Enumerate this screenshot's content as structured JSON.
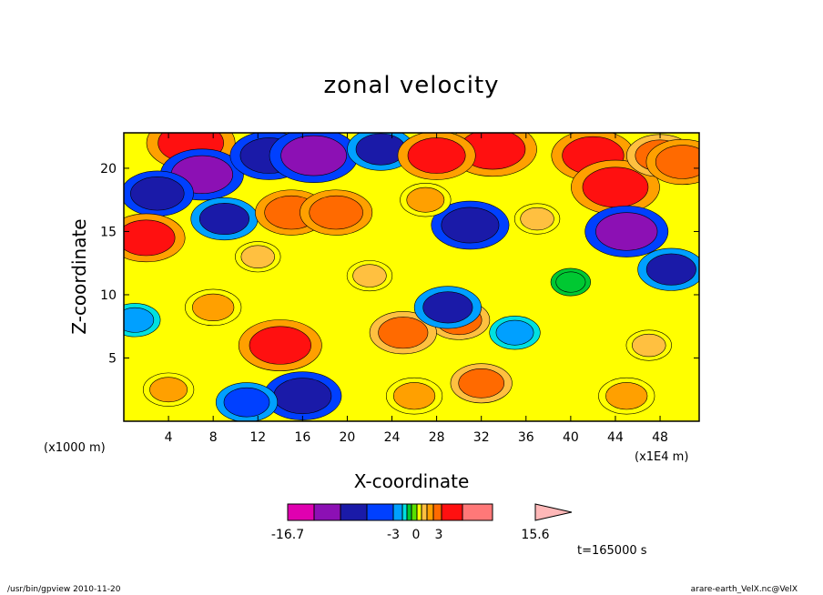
{
  "figure": {
    "title": "zonal velocity",
    "time_label": "t=165000 s",
    "footer_left": "/usr/bin/gpview   2010-11-20",
    "footer_right": "arare-earth_VelX.nc@VelX"
  },
  "chart_data": {
    "type": "heatmap",
    "title": "zonal velocity",
    "xlabel": "X-coordinate",
    "ylabel": "Z-coordinate",
    "x_unit_left": "(x1000 m)",
    "x_unit_right": "(x1E4 m)",
    "xlim": [
      0,
      51.5
    ],
    "ylim": [
      0,
      22.8
    ],
    "xticks": [
      4,
      8,
      12,
      16,
      20,
      24,
      28,
      32,
      36,
      40,
      44,
      48
    ],
    "yticks": [
      5,
      10,
      15,
      20
    ],
    "colorbar": {
      "tick_labels": [
        "-16.7",
        "-3",
        "0",
        "3",
        "15.6"
      ],
      "tick_values": [
        -16.7,
        -3,
        0,
        3,
        15.6
      ],
      "min": -16.7,
      "max": 15.6,
      "levels": [
        -16.7,
        -12,
        -8,
        -5,
        -3,
        -2,
        -1,
        0,
        1,
        2,
        3,
        5,
        8,
        12,
        15.6
      ],
      "colors": [
        "#e000b0",
        "#8c10b4",
        "#1a1aa8",
        "#0040ff",
        "#00a0ff",
        "#00e0e0",
        "#00c832",
        "#5ae000",
        "#ffff00",
        "#ffc040",
        "#ffa000",
        "#ff6a00",
        "#ff1010",
        "#ff7878",
        "#ffb8b8"
      ]
    },
    "features": [
      {
        "x": 6,
        "z": 22,
        "value": 10
      },
      {
        "x": 7,
        "z": 19.5,
        "value": -9
      },
      {
        "x": 3,
        "z": 18,
        "value": -7
      },
      {
        "x": 2,
        "z": 14.5,
        "value": 8
      },
      {
        "x": 9,
        "z": 16,
        "value": -6
      },
      {
        "x": 13,
        "z": 21,
        "value": -8
      },
      {
        "x": 17,
        "z": 21,
        "value": -10
      },
      {
        "x": 15,
        "z": 16.5,
        "value": 7
      },
      {
        "x": 19,
        "z": 16.5,
        "value": 7
      },
      {
        "x": 12,
        "z": 13,
        "value": 2
      },
      {
        "x": 23,
        "z": 21.5,
        "value": -6
      },
      {
        "x": 33,
        "z": 21.5,
        "value": 10
      },
      {
        "x": 28,
        "z": 21,
        "value": 8
      },
      {
        "x": 42,
        "z": 21,
        "value": 9
      },
      {
        "x": 44,
        "z": 18.5,
        "value": 10
      },
      {
        "x": 48,
        "z": 21,
        "value": 6
      },
      {
        "x": 31,
        "z": 15.5,
        "value": -8
      },
      {
        "x": 27,
        "z": 17.5,
        "value": 3
      },
      {
        "x": 45,
        "z": 15,
        "value": -9
      },
      {
        "x": 49,
        "z": 12,
        "value": -6
      },
      {
        "x": 37,
        "z": 16,
        "value": 2
      },
      {
        "x": 14,
        "z": 6,
        "value": 9
      },
      {
        "x": 8,
        "z": 9,
        "value": 4
      },
      {
        "x": 30,
        "z": 8,
        "value": 5
      },
      {
        "x": 25,
        "z": 7,
        "value": 6
      },
      {
        "x": 29,
        "z": 9,
        "value": -6
      },
      {
        "x": 35,
        "z": 7,
        "value": -3
      },
      {
        "x": 16,
        "z": 2,
        "value": -8
      },
      {
        "x": 11,
        "z": 1.5,
        "value": -5
      },
      {
        "x": 4,
        "z": 2.5,
        "value": 3
      },
      {
        "x": 26,
        "z": 2,
        "value": 4
      },
      {
        "x": 32,
        "z": 3,
        "value": 5
      },
      {
        "x": 45,
        "z": 2,
        "value": 4
      },
      {
        "x": 47,
        "z": 6,
        "value": 2
      },
      {
        "x": 40,
        "z": 11,
        "value": -1
      },
      {
        "x": 22,
        "z": 11.5,
        "value": 2
      },
      {
        "x": 1,
        "z": 8,
        "value": -3
      },
      {
        "x": 50,
        "z": 20.5,
        "value": 7
      }
    ]
  }
}
